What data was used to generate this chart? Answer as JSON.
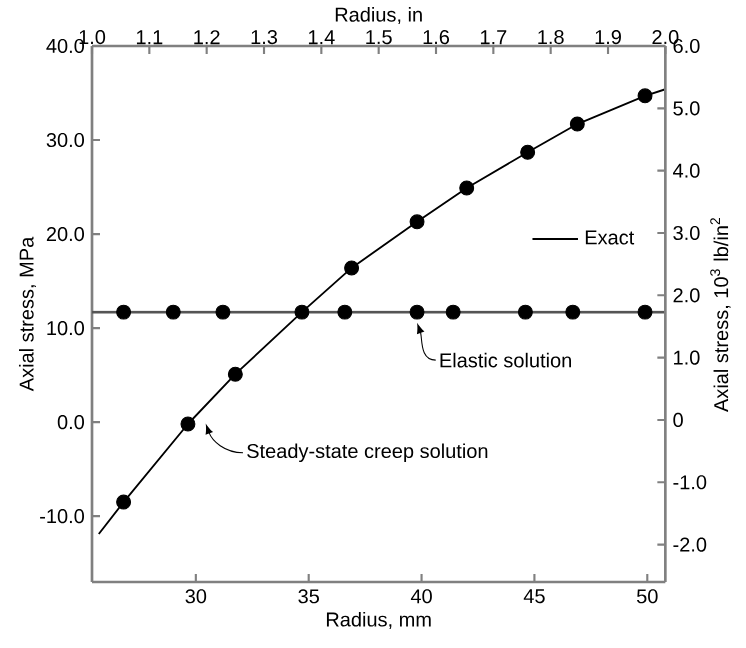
{
  "chart_data": {
    "type": "line",
    "xlabel": "Radius, mm",
    "x2label": "Radius, in",
    "ylabel": "Axial stress, MPa",
    "y2label": "Axial stress, 10$^{3}$ lb/in$^{2}$",
    "xlim": [
      25.4,
      50.8
    ],
    "xticks": [
      30,
      35,
      40,
      45,
      50
    ],
    "x2lim": [
      1.0,
      2.0
    ],
    "x2ticks": [
      {
        "value": 1.0,
        "label": "1.0"
      },
      {
        "value": 1.1,
        "label": "1.1"
      },
      {
        "value": 1.2,
        "label": "1.2"
      },
      {
        "value": 1.3,
        "label": "1.3"
      },
      {
        "value": 1.4,
        "label": "1.4"
      },
      {
        "value": 1.5,
        "label": "1.5"
      },
      {
        "value": 1.6,
        "label": "1.6"
      },
      {
        "value": 1.7,
        "label": "1.7"
      },
      {
        "value": 1.8,
        "label": "1.8"
      },
      {
        "value": 1.9,
        "label": "1.9"
      },
      {
        "value": 2.0,
        "label": "2.0"
      }
    ],
    "ylim": [
      -17,
      40
    ],
    "yticks": [
      {
        "value": -10,
        "label": "-10.0"
      },
      {
        "value": 0,
        "label": "0.0"
      },
      {
        "value": 10,
        "label": "10.0"
      },
      {
        "value": 20,
        "label": "20.0"
      },
      {
        "value": 30,
        "label": "30.0"
      },
      {
        "value": 40,
        "label": "40.0"
      }
    ],
    "y2lim": [
      -2.6,
      6.0
    ],
    "y2ticks": [
      {
        "value": -2,
        "label": "-2.0"
      },
      {
        "value": -1,
        "label": "-1.0"
      },
      0,
      {
        "value": 1,
        "label": "1.0"
      },
      {
        "value": 2,
        "label": "2.0"
      },
      {
        "value": 3,
        "label": "3.0"
      },
      {
        "value": 4,
        "label": "4.0"
      },
      {
        "value": 5,
        "label": "5.0"
      },
      {
        "value": 6,
        "label": "6.0"
      }
    ],
    "grid": false,
    "legend": "right",
    "series": [
      {
        "name": "Exact",
        "type": "line",
        "color": "#000000",
        "marker": "none",
        "x": [
          25.7,
          26.8,
          29.65,
          31.75,
          34.7,
          36.9,
          39.8,
          42.0,
          44.7,
          46.9,
          49.9,
          50.8
        ],
        "values": [
          -11.9,
          -8.5,
          -0.2,
          5.1,
          11.7,
          16.4,
          21.3,
          24.9,
          28.7,
          31.7,
          34.7,
          35.4
        ]
      },
      {
        "type": "line",
        "color": "#555555",
        "marker": "none",
        "x": [
          25.4,
          50.8
        ],
        "values": [
          11.7,
          11.7
        ]
      },
      {
        "type": "scatter",
        "color": "#000000",
        "marker": "circle",
        "x": [
          26.8,
          29.65,
          31.75,
          34.7,
          36.9,
          39.8,
          42.0,
          44.7,
          46.9,
          49.9,
          26.8,
          29.0,
          31.2,
          36.6,
          39.8,
          41.4,
          44.6,
          46.7,
          49.9
        ],
        "values": [
          -8.5,
          -0.2,
          5.1,
          11.7,
          16.4,
          21.3,
          24.9,
          28.7,
          31.7,
          34.7,
          11.7,
          11.7,
          11.7,
          11.7,
          11.7,
          11.7,
          11.7,
          11.7,
          11.7
        ]
      }
    ],
    "annotations": [
      {
        "text": "Elastic solution",
        "x": 39.8,
        "y": 11.7
      },
      {
        "text": "Steady-state creep solution",
        "x": 30.2,
        "y": 1.0
      }
    ]
  }
}
